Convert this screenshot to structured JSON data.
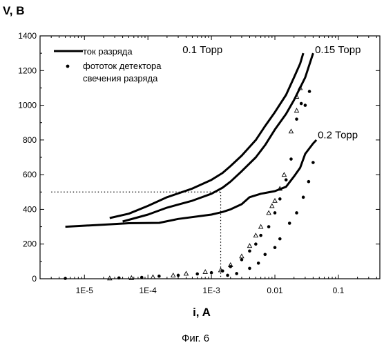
{
  "chart_data": {
    "type": "line",
    "title": "",
    "caption": "Фиг. 6",
    "ylabel": "V, B",
    "xlabel": "i, A",
    "x_scale": "log",
    "xlim": [
      2e-06,
      0.45
    ],
    "ylim": [
      0,
      1400
    ],
    "x_ticks": [
      {
        "value": 1e-05,
        "label": "1E-5"
      },
      {
        "value": 0.0001,
        "label": "1E-4"
      },
      {
        "value": 0.001,
        "label": "1E-3"
      },
      {
        "value": 0.01,
        "label": "0.01"
      },
      {
        "value": 0.1,
        "label": "0.1"
      }
    ],
    "y_ticks": [
      0,
      200,
      400,
      600,
      800,
      1000,
      1200,
      1400
    ],
    "grid": false,
    "legend": {
      "position": "top-left",
      "entries": [
        {
          "label": "ток разряда",
          "style": "line"
        },
        {
          "label": "фототок детектора",
          "label2": "свечения разряда",
          "style": "marker"
        }
      ]
    },
    "series": [
      {
        "name": "0.1 Торр",
        "kind": "line",
        "points": [
          [
            2.5e-05,
            350
          ],
          [
            5e-05,
            375
          ],
          [
            0.0001,
            420
          ],
          [
            0.0002,
            470
          ],
          [
            0.0005,
            520
          ],
          [
            0.001,
            570
          ],
          [
            0.0015,
            610
          ],
          [
            0.002,
            650
          ],
          [
            0.003,
            710
          ],
          [
            0.005,
            800
          ],
          [
            0.007,
            880
          ],
          [
            0.01,
            960
          ],
          [
            0.015,
            1060
          ],
          [
            0.02,
            1160
          ],
          [
            0.025,
            1240
          ],
          [
            0.028,
            1300
          ]
        ]
      },
      {
        "name": "0.15 Торр",
        "kind": "line",
        "points": [
          [
            4e-05,
            330
          ],
          [
            0.0001,
            370
          ],
          [
            0.0002,
            410
          ],
          [
            0.0005,
            450
          ],
          [
            0.001,
            490
          ],
          [
            0.0015,
            525
          ],
          [
            0.002,
            560
          ],
          [
            0.003,
            620
          ],
          [
            0.005,
            700
          ],
          [
            0.007,
            770
          ],
          [
            0.01,
            860
          ],
          [
            0.015,
            950
          ],
          [
            0.02,
            1030
          ],
          [
            0.03,
            1160
          ],
          [
            0.04,
            1300
          ]
        ]
      },
      {
        "name": "0.2 Торр",
        "kind": "line",
        "points": [
          [
            5e-06,
            300
          ],
          [
            2e-05,
            312
          ],
          [
            5e-05,
            320
          ],
          [
            0.00015,
            322
          ],
          [
            0.0003,
            345
          ],
          [
            0.001,
            370
          ],
          [
            0.0015,
            385
          ],
          [
            0.002,
            400
          ],
          [
            0.003,
            430
          ],
          [
            0.004,
            470
          ],
          [
            0.006,
            490
          ],
          [
            0.01,
            505
          ],
          [
            0.015,
            530
          ],
          [
            0.02,
            590
          ],
          [
            0.025,
            640
          ],
          [
            0.03,
            720
          ],
          [
            0.04,
            780
          ],
          [
            0.045,
            800
          ]
        ]
      },
      {
        "name": "",
        "kind": "dots",
        "marker": "circle",
        "points": [
          [
            5e-06,
            2
          ],
          [
            3.5e-05,
            5
          ],
          [
            8e-05,
            8
          ],
          [
            0.00015,
            15
          ],
          [
            0.0003,
            20
          ],
          [
            0.0006,
            28
          ],
          [
            0.001,
            35
          ],
          [
            0.0015,
            45
          ],
          [
            0.002,
            70
          ],
          [
            0.003,
            110
          ],
          [
            0.004,
            160
          ],
          [
            0.005,
            200
          ],
          [
            0.006,
            250
          ],
          [
            0.008,
            300
          ],
          [
            0.01,
            380
          ],
          [
            0.012,
            460
          ],
          [
            0.015,
            570
          ],
          [
            0.018,
            690
          ],
          [
            0.022,
            920
          ],
          [
            0.026,
            1010
          ],
          [
            0.03,
            1000
          ],
          [
            0.0018,
            20
          ],
          [
            0.0025,
            30
          ],
          [
            0.004,
            60
          ],
          [
            0.0055,
            90
          ],
          [
            0.007,
            140
          ],
          [
            0.01,
            180
          ],
          [
            0.012,
            230
          ],
          [
            0.017,
            320
          ],
          [
            0.022,
            380
          ],
          [
            0.028,
            470
          ],
          [
            0.034,
            560
          ],
          [
            0.04,
            670
          ],
          [
            0.035,
            1080
          ]
        ]
      },
      {
        "name": "",
        "kind": "dots",
        "marker": "triangle",
        "points": [
          [
            2.5e-05,
            3
          ],
          [
            5.5e-05,
            5
          ],
          [
            0.00012,
            10
          ],
          [
            0.00025,
            20
          ],
          [
            0.0004,
            30
          ],
          [
            0.0008,
            40
          ],
          [
            0.0014,
            50
          ],
          [
            0.002,
            80
          ],
          [
            0.003,
            130
          ],
          [
            0.004,
            190
          ],
          [
            0.005,
            250
          ],
          [
            0.006,
            300
          ],
          [
            0.008,
            380
          ],
          [
            0.009,
            420
          ],
          [
            0.01,
            450
          ],
          [
            0.012,
            520
          ],
          [
            0.014,
            600
          ],
          [
            0.018,
            850
          ],
          [
            0.022,
            970
          ],
          [
            0.025,
            1100
          ],
          [
            0.022,
            1050
          ]
        ]
      }
    ],
    "annotations": [
      {
        "text": "0.1 Торр",
        "anchor": [
          0.00045,
          1320
        ]
      },
      {
        "text": "0.15 Торр",
        "anchor": [
          0.045,
          1320
        ]
      },
      {
        "text": "0.2 Торр",
        "anchor": [
          0.045,
          830
        ]
      }
    ],
    "reference_lines": [
      {
        "kind": "dotted",
        "from": [
          3e-06,
          500
        ],
        "to": [
          0.0014,
          500
        ]
      },
      {
        "kind": "dotted",
        "from": [
          0.0014,
          500
        ],
        "to": [
          0.0014,
          0
        ]
      }
    ]
  }
}
